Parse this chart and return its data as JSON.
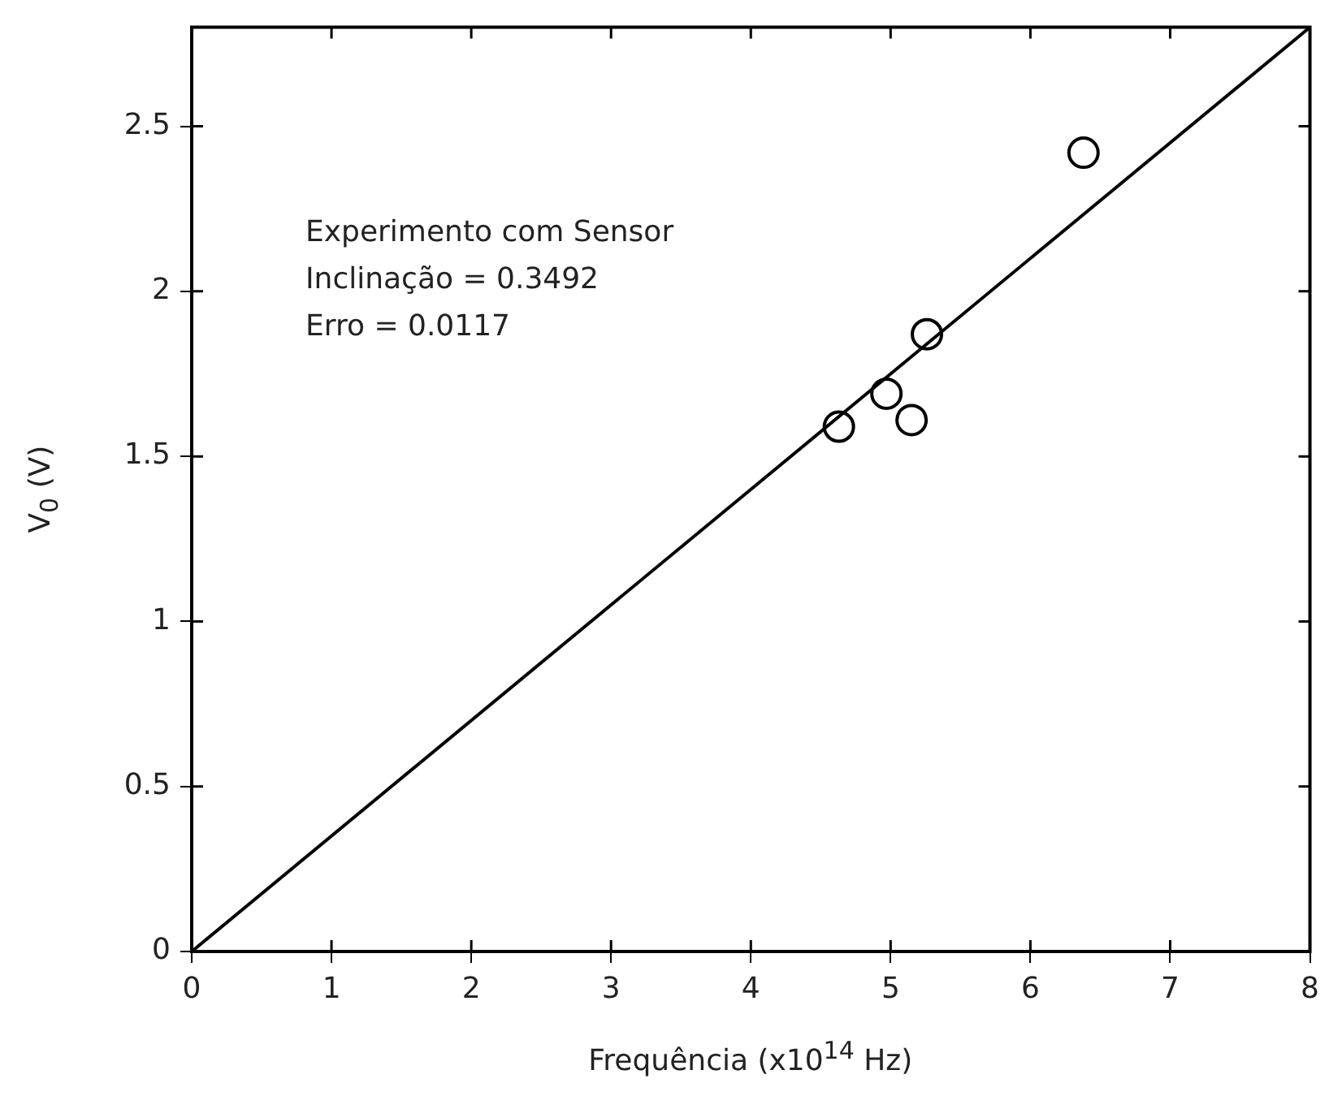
{
  "chart_data": {
    "type": "scatter",
    "xlabel": "Frequência (x10$^{14}$ Hz)",
    "ylabel": "V$_{0}$ (V)",
    "annotations": [
      "Experimento com Sensor",
      "Inclinação = 0.3492",
      "Erro = 0.0117"
    ],
    "series": [
      {
        "color": "#000000",
        "marker": "circle",
        "x": [
          4.63,
          4.97,
          5.15,
          5.26,
          6.38
        ],
        "values": [
          1.59,
          1.69,
          1.61,
          1.87,
          2.42
        ]
      },
      {
        "type": "line",
        "color": "#000000",
        "marker": "none",
        "x": [
          0,
          8
        ],
        "values": [
          0,
          2.8
        ]
      }
    ],
    "xlim": [
      0,
      8
    ],
    "ylim": [
      0,
      2.8
    ],
    "xticks": [
      0,
      1,
      2,
      3,
      4,
      5,
      6,
      7,
      8
    ],
    "yticks": [
      0,
      0.5,
      1,
      1.5,
      2,
      2.5
    ],
    "grid": false,
    "legend": false
  }
}
